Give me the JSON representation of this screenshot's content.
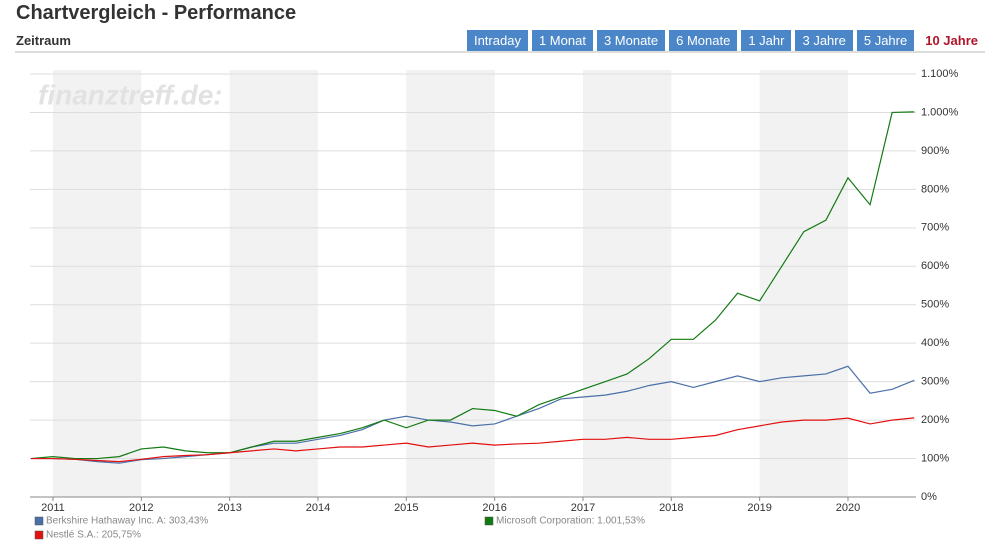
{
  "header": {
    "title": "Chartvergleich - Performance",
    "subtitle": "Zeitraum"
  },
  "periods": [
    "Intraday",
    "1 Monat",
    "3 Monate",
    "6 Monate",
    "1 Jahr",
    "3 Jahre",
    "5 Jahre",
    "10 Jahre"
  ],
  "chart_data": {
    "type": "line",
    "watermark": "finanztreff.de:",
    "x": [
      2010.75,
      2011,
      2011.25,
      2011.5,
      2011.75,
      2012,
      2012.25,
      2012.5,
      2012.75,
      2013,
      2013.25,
      2013.5,
      2013.75,
      2014,
      2014.25,
      2014.5,
      2014.75,
      2015,
      2015.25,
      2015.5,
      2015.75,
      2016,
      2016.25,
      2016.5,
      2016.75,
      2017,
      2017.25,
      2017.5,
      2017.75,
      2018,
      2018.25,
      2018.5,
      2018.75,
      2019,
      2019.25,
      2019.5,
      2019.75,
      2020,
      2020.25,
      2020.5,
      2020.75
    ],
    "series": [
      {
        "name": "Berkshire Hathaway Inc. A: 303,43%",
        "color": "#4a70a8",
        "values": [
          100,
          100,
          98,
          92,
          88,
          97,
          100,
          105,
          110,
          115,
          130,
          140,
          140,
          150,
          160,
          175,
          200,
          210,
          200,
          195,
          185,
          190,
          210,
          230,
          255,
          260,
          265,
          275,
          290,
          300,
          285,
          300,
          315,
          300,
          310,
          315,
          320,
          340,
          270,
          280,
          303.43
        ]
      },
      {
        "name": "Microsoft Corporation: 1.001,53%",
        "color": "#137a13",
        "values": [
          100,
          105,
          100,
          100,
          105,
          125,
          130,
          120,
          115,
          115,
          130,
          145,
          145,
          155,
          165,
          180,
          200,
          180,
          200,
          200,
          230,
          225,
          210,
          240,
          260,
          280,
          300,
          320,
          360,
          410,
          410,
          460,
          530,
          510,
          600,
          690,
          720,
          830,
          760,
          1000,
          1001.53
        ]
      },
      {
        "name": "Nestlé S.A.: 205,75%",
        "color": "#e31010",
        "values": [
          100,
          100,
          98,
          95,
          92,
          98,
          105,
          108,
          110,
          115,
          120,
          125,
          120,
          125,
          130,
          130,
          135,
          140,
          130,
          135,
          140,
          135,
          138,
          140,
          145,
          150,
          150,
          155,
          150,
          150,
          155,
          160,
          175,
          185,
          195,
          200,
          200,
          205,
          190,
          200,
          205.75
        ]
      }
    ],
    "xlim": [
      2010.74,
      2020.77
    ],
    "xticks": [
      2011,
      2012,
      2013,
      2014,
      2015,
      2016,
      2017,
      2018,
      2019,
      2020
    ],
    "ylim": [
      0,
      1100
    ],
    "yticks": [
      {
        "value": 0,
        "label": "0%"
      },
      {
        "value": 100,
        "label": "100%"
      },
      {
        "value": 200,
        "label": "200%"
      },
      {
        "value": 300,
        "label": "300%"
      },
      {
        "value": 400,
        "label": "400%"
      },
      {
        "value": 500,
        "label": "500%"
      },
      {
        "value": 600,
        "label": "600%"
      },
      {
        "value": 700,
        "label": "700%"
      },
      {
        "value": 800,
        "label": "800%"
      },
      {
        "value": 900,
        "label": "900%"
      },
      {
        "value": 1000,
        "label": "1.000%"
      },
      {
        "value": 1100,
        "label": "1.100%"
      }
    ],
    "grid": true
  }
}
